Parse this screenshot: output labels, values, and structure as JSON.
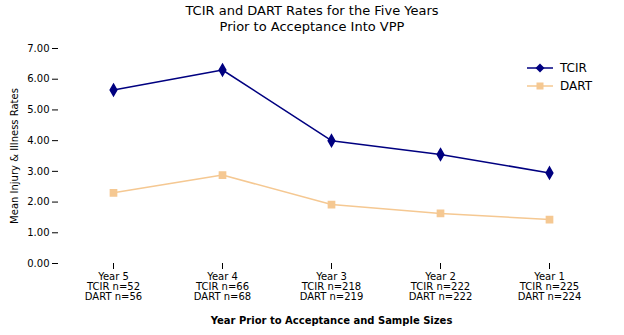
{
  "chart_data": {
    "type": "line",
    "title": "TCIR and DART Rates for the Five Years\nPrior to Acceptance Into VPP",
    "xlabel": "Year Prior to Acceptance and Sample Sizes",
    "ylabel": "Mean Injury & Illness Rates",
    "categories": [
      "Year 5\nTCIR n=52\nDART n=56",
      "Year 4\nTCIR n=66\nDART n=68",
      "Year 3\nTCIR n=218\nDART n=219",
      "Year 2\nTCIR n=222\nDART n=222",
      "Year 1\nTCIR n=225\nDART n=224"
    ],
    "series": [
      {
        "name": "TCIR",
        "color": "#000080",
        "marker": "diamond",
        "values": [
          5.65,
          6.3,
          4.0,
          3.55,
          2.95
        ]
      },
      {
        "name": "DART",
        "color": "#F5C892",
        "marker": "square",
        "values": [
          2.3,
          2.88,
          1.92,
          1.63,
          1.43
        ]
      }
    ],
    "ylim": [
      0.0,
      7.0
    ],
    "yticks": [
      {
        "value": 0,
        "label": "0.00"
      },
      {
        "value": 1,
        "label": "1.00"
      },
      {
        "value": 2,
        "label": "2.00"
      },
      {
        "value": 3,
        "label": "3.00"
      },
      {
        "value": 4,
        "label": "4.00"
      },
      {
        "value": 5,
        "label": "5.00"
      },
      {
        "value": 6,
        "label": "6.00"
      },
      {
        "value": 7,
        "label": "7.00"
      }
    ],
    "grid": false,
    "legend": "upper right"
  }
}
